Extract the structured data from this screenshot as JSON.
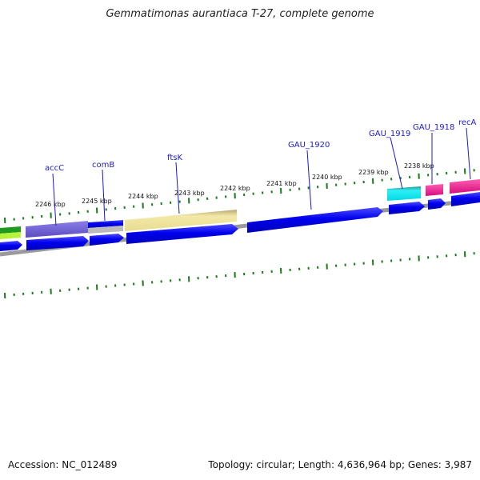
{
  "title": "Gemmatimonas aurantiaca T-27, complete genome",
  "accession": "Accession: NC_012489",
  "summary": "Topology: circular; Length: 4,636,964 bp; Genes: 3,987",
  "kbp_labels": [
    "2246 kbp",
    "2245 kbp",
    "2244 kbp",
    "2243 kbp",
    "2242 kbp",
    "2241 kbp",
    "2240 kbp",
    "2239 kbp",
    "2238 kbp"
  ],
  "gene_labels": [
    "accC",
    "comB",
    "ftsK",
    "GAU_1920",
    "GAU_1919",
    "GAU_1918",
    "recA"
  ],
  "colors": {
    "gene_label": "#1a1acd",
    "tick": "#1a7a1a",
    "backbone": "#8a8a8a",
    "cds": "#0000e6",
    "track_purple": "#6a5acd",
    "track_khaki": "#eee29a",
    "track_cyan": "#00e5ee",
    "track_magenta": "#e6138c",
    "track_green": "#1e9a1e",
    "track_lime": "#b6f23a"
  }
}
